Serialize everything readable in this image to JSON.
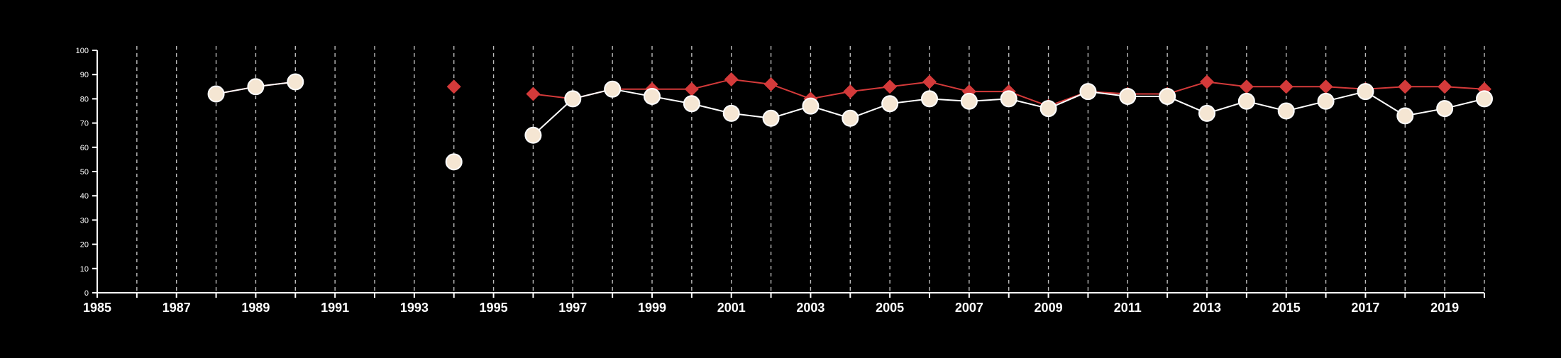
{
  "chart_data": {
    "type": "line",
    "title": "",
    "xlabel": "",
    "ylabel": "",
    "xlim": [
      1985,
      2020
    ],
    "ylim": [
      0,
      100
    ],
    "x_ticks": [
      1985,
      1986,
      1987,
      1988,
      1989,
      1990,
      1991,
      1992,
      1993,
      1994,
      1995,
      1996,
      1997,
      1998,
      1999,
      2000,
      2001,
      2002,
      2003,
      2004,
      2005,
      2006,
      2007,
      2008,
      2009,
      2010,
      2011,
      2012,
      2013,
      2014,
      2015,
      2016,
      2017,
      2018,
      2019,
      2020
    ],
    "x_tick_labels": [
      "1985",
      "",
      "1987",
      "",
      "1989",
      "",
      "1991",
      "",
      "1993",
      "",
      "1995",
      "",
      "1997",
      "",
      "1999",
      "",
      "2001",
      "",
      "2003",
      "",
      "2005",
      "",
      "2007",
      "",
      "2009",
      "",
      "2011",
      "",
      "2013",
      "",
      "2015",
      "",
      "2017",
      "",
      "2019",
      ""
    ],
    "y_ticks": [
      0,
      10,
      20,
      30,
      40,
      50,
      60,
      70,
      80,
      90,
      100
    ],
    "y_tick_labels": [
      "0",
      "10",
      "20",
      "30",
      "40",
      "50",
      "60",
      "70",
      "80",
      "90",
      "100"
    ],
    "grid": "vertical dashed lines at each year",
    "legend": "none",
    "series": [
      {
        "marker": "circle",
        "color": "#ffffff",
        "marker_fill": "#f5e6d3",
        "points": [
          {
            "x": 1988,
            "y": 82
          },
          {
            "x": 1989,
            "y": 85
          },
          {
            "x": 1990,
            "y": 87
          },
          {
            "x": 1994,
            "y": 54
          },
          {
            "x": 1996,
            "y": 65
          },
          {
            "x": 1997,
            "y": 80
          },
          {
            "x": 1998,
            "y": 84
          },
          {
            "x": 1999,
            "y": 81
          },
          {
            "x": 2000,
            "y": 78
          },
          {
            "x": 2001,
            "y": 74
          },
          {
            "x": 2002,
            "y": 72
          },
          {
            "x": 2003,
            "y": 77
          },
          {
            "x": 2004,
            "y": 72
          },
          {
            "x": 2005,
            "y": 78
          },
          {
            "x": 2006,
            "y": 80
          },
          {
            "x": 2007,
            "y": 79
          },
          {
            "x": 2008,
            "y": 80
          },
          {
            "x": 2009,
            "y": 76
          },
          {
            "x": 2010,
            "y": 83
          },
          {
            "x": 2011,
            "y": 81
          },
          {
            "x": 2012,
            "y": 81
          },
          {
            "x": 2013,
            "y": 74
          },
          {
            "x": 2014,
            "y": 79
          },
          {
            "x": 2015,
            "y": 75
          },
          {
            "x": 2016,
            "y": 79
          },
          {
            "x": 2017,
            "y": 83
          },
          {
            "x": 2018,
            "y": 73
          },
          {
            "x": 2019,
            "y": 76
          },
          {
            "x": 2020,
            "y": 80
          }
        ]
      },
      {
        "marker": "diamond",
        "color": "#d43a3a",
        "marker_fill": "#d43a3a",
        "points": [
          {
            "x": 1988,
            "y": 82
          },
          {
            "x": 1989,
            "y": 85
          },
          {
            "x": 1990,
            "y": 87
          },
          {
            "x": 1994,
            "y": 85
          },
          {
            "x": 1996,
            "y": 82
          },
          {
            "x": 1997,
            "y": 80
          },
          {
            "x": 1998,
            "y": 84
          },
          {
            "x": 1999,
            "y": 84
          },
          {
            "x": 2000,
            "y": 84
          },
          {
            "x": 2001,
            "y": 88
          },
          {
            "x": 2002,
            "y": 86
          },
          {
            "x": 2003,
            "y": 80
          },
          {
            "x": 2004,
            "y": 83
          },
          {
            "x": 2005,
            "y": 85
          },
          {
            "x": 2006,
            "y": 87
          },
          {
            "x": 2007,
            "y": 83
          },
          {
            "x": 2008,
            "y": 83
          },
          {
            "x": 2009,
            "y": 77
          },
          {
            "x": 2010,
            "y": 83
          },
          {
            "x": 2011,
            "y": 82
          },
          {
            "x": 2012,
            "y": 82
          },
          {
            "x": 2013,
            "y": 87
          },
          {
            "x": 2014,
            "y": 85
          },
          {
            "x": 2015,
            "y": 85
          },
          {
            "x": 2016,
            "y": 85
          },
          {
            "x": 2017,
            "y": 84
          },
          {
            "x": 2018,
            "y": 85
          },
          {
            "x": 2019,
            "y": 85
          },
          {
            "x": 2020,
            "y": 84
          }
        ]
      }
    ]
  }
}
